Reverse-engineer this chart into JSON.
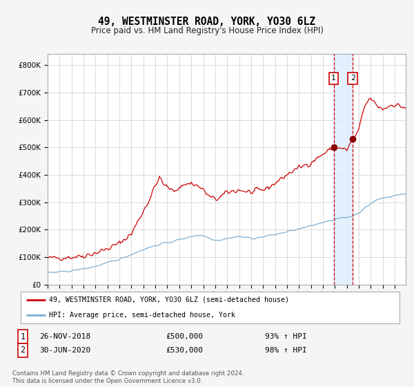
{
  "title": "49, WESTMINSTER ROAD, YORK, YO30 6LZ",
  "subtitle": "Price paid vs. HM Land Registry's House Price Index (HPI)",
  "ylabel_ticks": [
    "£0",
    "£100K",
    "£200K",
    "£300K",
    "£400K",
    "£500K",
    "£600K",
    "£700K",
    "£800K"
  ],
  "ytick_vals": [
    0,
    100000,
    200000,
    300000,
    400000,
    500000,
    600000,
    700000,
    800000
  ],
  "ylim": [
    0,
    840000
  ],
  "line1_color": "#cc0000",
  "line2_color": "#7bafd4",
  "marker_color": "#8b0000",
  "vline_color": "#cc0000",
  "shade_color": "#ddeeff",
  "point1_value": 500000,
  "point2_value": 530000,
  "legend_label1": "49, WESTMINSTER ROAD, YORK, YO30 6LZ (semi-detached house)",
  "legend_label2": "HPI: Average price, semi-detached house, York",
  "transaction1_num": "1",
  "transaction1_date": "26-NOV-2018",
  "transaction1_price": "£500,000",
  "transaction1_hpi": "93% ↑ HPI",
  "transaction2_num": "2",
  "transaction2_date": "30-JUN-2020",
  "transaction2_price": "£530,000",
  "transaction2_hpi": "98% ↑ HPI",
  "footer": "Contains HM Land Registry data © Crown copyright and database right 2024.\nThis data is licensed under the Open Government Licence v3.0.",
  "background_color": "#f5f5f5",
  "plot_bg_color": "#ffffff",
  "grid_color": "#cccccc",
  "start_year": 1995,
  "end_year": 2024,
  "point1_year": 2018.9,
  "point2_year": 2020.5
}
